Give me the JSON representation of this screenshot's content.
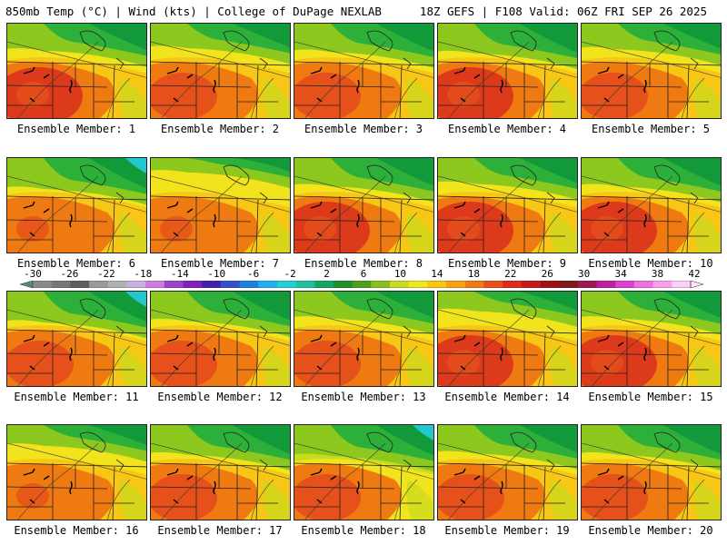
{
  "header": {
    "left": "850mb Temp (°C) | Wind (kts) | College of DuPage NEXLAB",
    "right": "18Z GEFS | F108 Valid: 06Z FRI SEP 26 2025"
  },
  "members": [
    {
      "label": "Ensemble Member: 1",
      "variant": "hot",
      "north": 0.85
    },
    {
      "label": "Ensemble Member: 2",
      "variant": "warm",
      "north": 0.75
    },
    {
      "label": "Ensemble Member: 3",
      "variant": "warm",
      "north": 0.9
    },
    {
      "label": "Ensemble Member: 4",
      "variant": "hot",
      "north": 0.95
    },
    {
      "label": "Ensemble Member: 5",
      "variant": "warm",
      "north": 0.8
    },
    {
      "label": "Ensemble Member: 6",
      "variant": "mild",
      "north": 1.0
    },
    {
      "label": "Ensemble Member: 7",
      "variant": "mild",
      "north": 0.35
    },
    {
      "label": "Ensemble Member: 8",
      "variant": "hot",
      "north": 0.9
    },
    {
      "label": "Ensemble Member: 9",
      "variant": "hot",
      "north": 0.8
    },
    {
      "label": "Ensemble Member: 10",
      "variant": "hot",
      "north": 0.9
    },
    {
      "label": "Ensemble Member: 11",
      "variant": "warm",
      "north": 1.0
    },
    {
      "label": "Ensemble Member: 12",
      "variant": "warm",
      "north": 0.95
    },
    {
      "label": "Ensemble Member: 13",
      "variant": "warm",
      "north": 0.85
    },
    {
      "label": "Ensemble Member: 14",
      "variant": "hot",
      "north": 0.55
    },
    {
      "label": "Ensemble Member: 15",
      "variant": "hot",
      "north": 0.85
    },
    {
      "label": "Ensemble Member: 16",
      "variant": "mild",
      "north": 0.6
    },
    {
      "label": "Ensemble Member: 17",
      "variant": "warm",
      "north": 0.95
    },
    {
      "label": "Ensemble Member: 18",
      "variant": "cool",
      "north": 1.0
    },
    {
      "label": "Ensemble Member: 19",
      "variant": "warm",
      "north": 0.9
    },
    {
      "label": "Ensemble Member: 20",
      "variant": "warm",
      "north": 0.95
    }
  ],
  "colorbar": {
    "ticks": [
      "-30",
      "-26",
      "-22",
      "-18",
      "-14",
      "-10",
      "-6",
      "-2",
      "2",
      "6",
      "10",
      "14",
      "18",
      "22",
      "26",
      "30",
      "34",
      "38",
      "42"
    ],
    "colors": [
      "#8a8a8a",
      "#777777",
      "#5e5e5e",
      "#9a9a9a",
      "#b0b0b0",
      "#c8b0e0",
      "#d07ae0",
      "#a040d0",
      "#8020c0",
      "#4020b0",
      "#3050d0",
      "#2080e0",
      "#20b0f0",
      "#20d0d8",
      "#20c0a0",
      "#10a860",
      "#20902a",
      "#4ca020",
      "#88c020",
      "#c8dc20",
      "#f0e81a",
      "#f8c810",
      "#f8a010",
      "#f07a10",
      "#e85018",
      "#e02a1a",
      "#c81818",
      "#a01010",
      "#801818",
      "#a01850",
      "#c020a0",
      "#e040d0",
      "#f070e0",
      "#f8a0f0",
      "#fcd0f8"
    ],
    "cold_end": "#5a8a6a",
    "hot_end": "#ffe0ff"
  },
  "map_colors": {
    "green_dark": "#129a3a",
    "green": "#2cb03a",
    "lime": "#8cc81e",
    "yellowgreen": "#c8dc20",
    "yellow": "#f2e41c",
    "gold": "#f8c614",
    "orange": "#f6a010",
    "darkorange": "#f07a12",
    "red": "#e6501a",
    "deepred": "#dc3a1a",
    "cyan": "#22c8d0"
  }
}
